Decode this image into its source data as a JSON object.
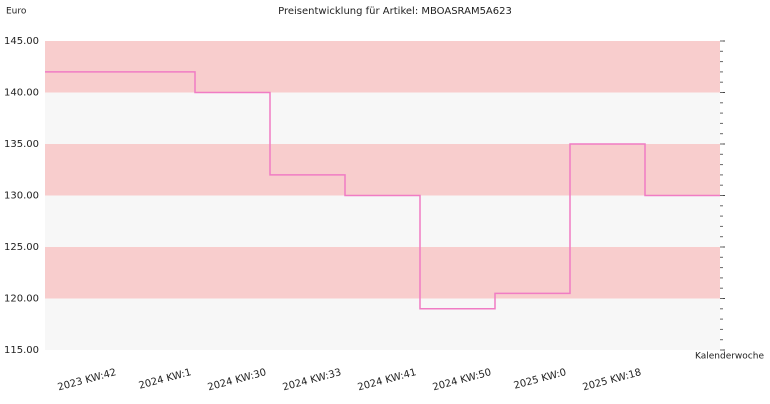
{
  "chart_data": {
    "type": "step",
    "title": "Preisentwicklung für Artikel: MBOASRAM5A623",
    "y_label": "Euro",
    "x_label": "Kalenderwoche",
    "categories": [
      "2023 KW:42",
      "2024 KW:1",
      "2024 KW:30",
      "2024 KW:33",
      "2024 KW:41",
      "2024 KW:50",
      "2025 KW:0",
      "2025 KW:18"
    ],
    "values": [
      142,
      140,
      132,
      130,
      119,
      120.5,
      135,
      130
    ],
    "color": "#f07cc4",
    "band_colors": [
      "#f8cdcd",
      "#f7f7f7"
    ],
    "ylim": [
      115,
      145
    ],
    "yticks": [
      {
        "value": 145,
        "label": "145.00"
      },
      {
        "value": 140,
        "label": "140.00"
      },
      {
        "value": 135,
        "label": "135.00"
      },
      {
        "value": 130,
        "label": "130.00"
      },
      {
        "value": 125,
        "label": "125.00"
      },
      {
        "value": 120,
        "label": "120.00"
      },
      {
        "value": 115,
        "label": "115.00"
      }
    ]
  }
}
